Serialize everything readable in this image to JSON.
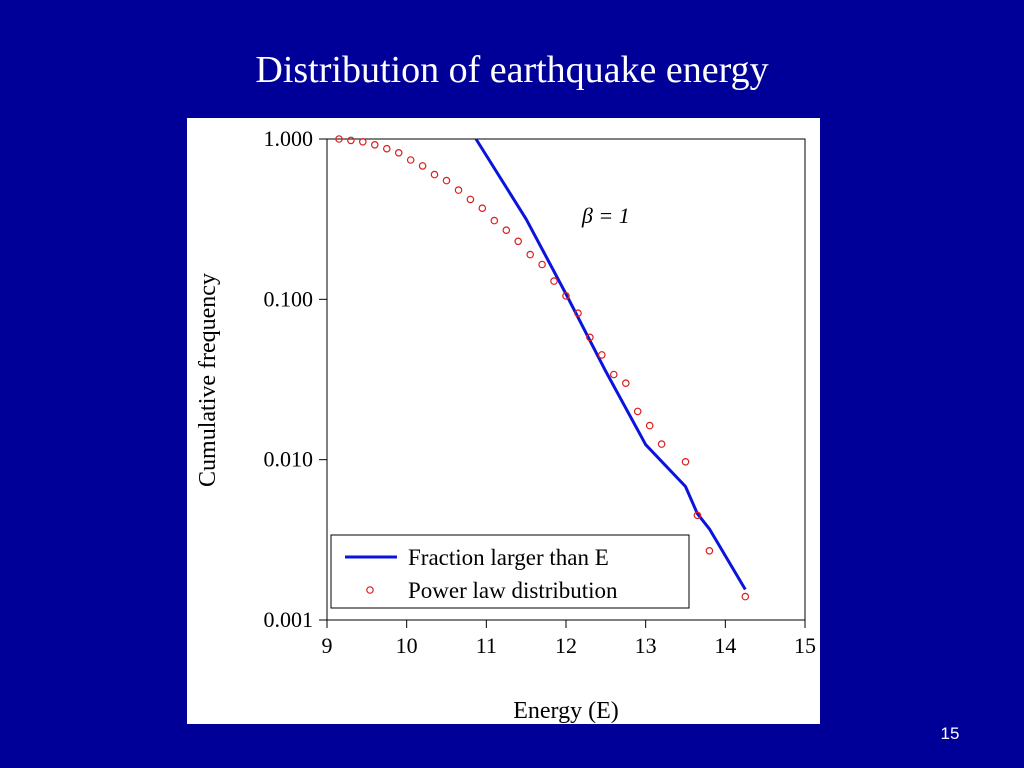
{
  "slide": {
    "title": "Distribution of earthquake energy",
    "page_number": "15"
  },
  "colors": {
    "background": "#000099",
    "panel": "#ffffff",
    "line_series": "#0a14dc",
    "scatter_series": "#dc1e1e"
  },
  "chart_data": {
    "type": "line",
    "title": "",
    "xlabel": "Energy (E)",
    "ylabel": "Cumulative frequency",
    "xlim": [
      9,
      15
    ],
    "ylim": [
      0.001,
      1.0
    ],
    "yscale": "log",
    "xticks": [
      9,
      10,
      11,
      12,
      13,
      14,
      15
    ],
    "xtick_labels": [
      "9",
      "10",
      "11",
      "12",
      "13",
      "14",
      "15"
    ],
    "yticks": [
      1.0,
      0.1,
      0.01,
      0.001
    ],
    "ytick_labels": [
      "1.000",
      "0.100",
      "0.010",
      "0.001"
    ],
    "grid": false,
    "legend_position": "bottom-left",
    "annotation": {
      "text": "β = 1",
      "x": 12.2,
      "y": 0.3
    },
    "series": [
      {
        "name": "Fraction larger than E",
        "type": "line",
        "color": "#0a14dc",
        "x": [
          10.87,
          11.5,
          12.0,
          12.5,
          13.0,
          13.5,
          13.65,
          13.8,
          14.25
        ],
        "y": [
          1.0,
          0.316,
          0.108,
          0.0355,
          0.0124,
          0.0068,
          0.0046,
          0.0037,
          0.00155
        ]
      },
      {
        "name": "Power law distribution",
        "type": "scatter",
        "color": "#dc1e1e",
        "x": [
          9.15,
          9.3,
          9.45,
          9.6,
          9.75,
          9.9,
          10.05,
          10.2,
          10.35,
          10.5,
          10.65,
          10.8,
          10.95,
          11.1,
          11.25,
          11.4,
          11.55,
          11.7,
          11.85,
          12.0,
          12.15,
          12.3,
          12.45,
          12.6,
          12.75,
          12.9,
          13.05,
          13.2,
          13.5,
          13.65,
          13.8,
          14.25
        ],
        "y": [
          1.0,
          0.98,
          0.96,
          0.92,
          0.87,
          0.82,
          0.74,
          0.68,
          0.6,
          0.55,
          0.48,
          0.42,
          0.37,
          0.31,
          0.27,
          0.23,
          0.19,
          0.165,
          0.13,
          0.105,
          0.082,
          0.058,
          0.045,
          0.034,
          0.03,
          0.02,
          0.0163,
          0.0125,
          0.0097,
          0.0045,
          0.0027,
          0.0014
        ]
      }
    ]
  }
}
